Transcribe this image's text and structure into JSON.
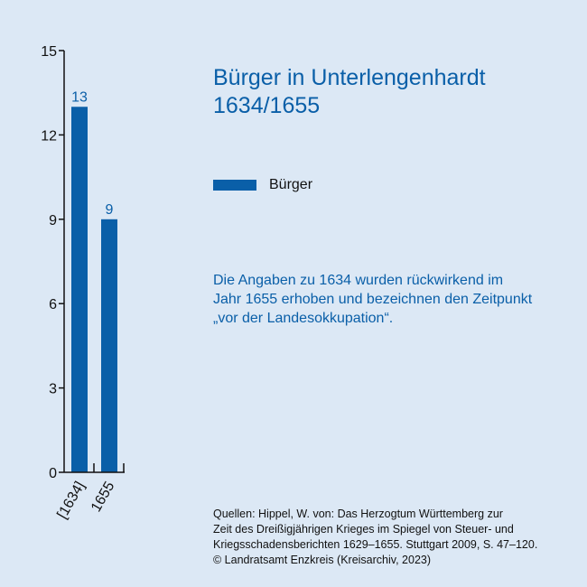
{
  "title_lines": [
    "Bürger in Unterlengenhardt",
    "1634/1655"
  ],
  "legend": {
    "label": "Bürger",
    "color": "#0a5fa8"
  },
  "note_lines": [
    "Die Angaben zu 1634 wurden rückwirkend im",
    "Jahr 1655 erhoben und bezeichnen den Zeitpunkt",
    "„vor der Landesokkupation“."
  ],
  "source_lines": [
    "Quellen: Hippel, W. von: Das Herzogtum Württemberg zur",
    "Zeit des Dreißigjährigen Krieges im Spiegel von Steuer- und",
    "Kriegsschadensberichten 1629–1655. Stuttgart 2009, S. 47–120.",
    "© Landratsamt Enzkreis (Kreisarchiv, 2023)"
  ],
  "colors": {
    "background": "#dce8f5",
    "bar": "#0a5fa8",
    "text": "#111111"
  },
  "chart_data": {
    "type": "bar",
    "categories": [
      "[1634]",
      "1655"
    ],
    "series": [
      {
        "name": "Bürger",
        "values": [
          13,
          9
        ]
      }
    ],
    "ylim": [
      0,
      15
    ],
    "yticks": [
      0,
      3,
      6,
      9,
      12,
      15
    ],
    "data_labels": [
      "13",
      "9"
    ],
    "grid": false,
    "legend_position": "right"
  }
}
